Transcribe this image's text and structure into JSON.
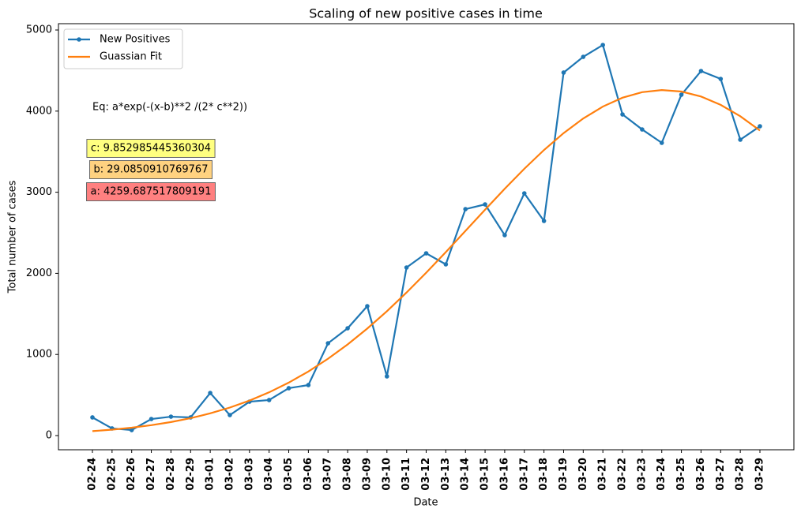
{
  "chart_data": {
    "type": "line",
    "title": "Scaling of new positive cases in time",
    "xlabel": "Date",
    "ylabel": "Total number of cases",
    "categories": [
      "02-24",
      "02-25",
      "02-26",
      "02-27",
      "02-28",
      "02-29",
      "03-01",
      "03-02",
      "03-03",
      "03-04",
      "03-05",
      "03-06",
      "03-07",
      "03-08",
      "03-09",
      "03-10",
      "03-11",
      "03-12",
      "03-13",
      "03-14",
      "03-15",
      "03-16",
      "03-17",
      "03-18",
      "03-19",
      "03-20",
      "03-21",
      "03-22",
      "03-23",
      "03-24",
      "03-25",
      "03-26",
      "03-27",
      "03-28",
      "03-29"
    ],
    "series": [
      {
        "name": "New Positives",
        "color": "#1f77b4",
        "markers": true,
        "values": [
          224,
          88,
          68,
          204,
          233,
          224,
          525,
          253,
          418,
          438,
          584,
          623,
          1138,
          1323,
          1595,
          730,
          2072,
          2247,
          2111,
          2792,
          2850,
          2471,
          2986,
          2646,
          4475,
          4669,
          4815,
          3959,
          3774,
          3609,
          4202,
          4494,
          4397,
          3648,
          3813
        ]
      },
      {
        "name": "Guassian Fit",
        "color": "#ff7f0e",
        "markers": false,
        "values": [
          54.7,
          73.3,
          97.4,
          128.1,
          166.6,
          214.7,
          273.8,
          345.5,
          431.4,
          533.4,
          652.6,
          790.3,
          947.2,
          1123.7,
          1319.4,
          1533.3,
          1763.5,
          2007.7,
          2262.1,
          2522.9,
          2784.6,
          3041.9,
          3289.4,
          3520.2,
          3728.5,
          3909.1,
          4056.0,
          4165.3,
          4233.9,
          4259.5,
          4241.4,
          4180.0,
          4077.3,
          3936.4,
          3761.5
        ]
      }
    ],
    "ylim": [
      -175,
      5078
    ],
    "yticks": [
      0,
      1000,
      2000,
      3000,
      4000,
      5000
    ],
    "grid": false,
    "legend": "upper-left",
    "annotations": [
      {
        "text": "Eq: a*exp(-(x-b)**2 /(2* c**2))"
      },
      {
        "text": "c: 9.852985445360304",
        "color": "#ffff80"
      },
      {
        "text": "b: 29.0850910769767",
        "color": "#ffd280"
      },
      {
        "text": "a: 4259.687517809191",
        "color": "#ff8080"
      }
    ]
  }
}
